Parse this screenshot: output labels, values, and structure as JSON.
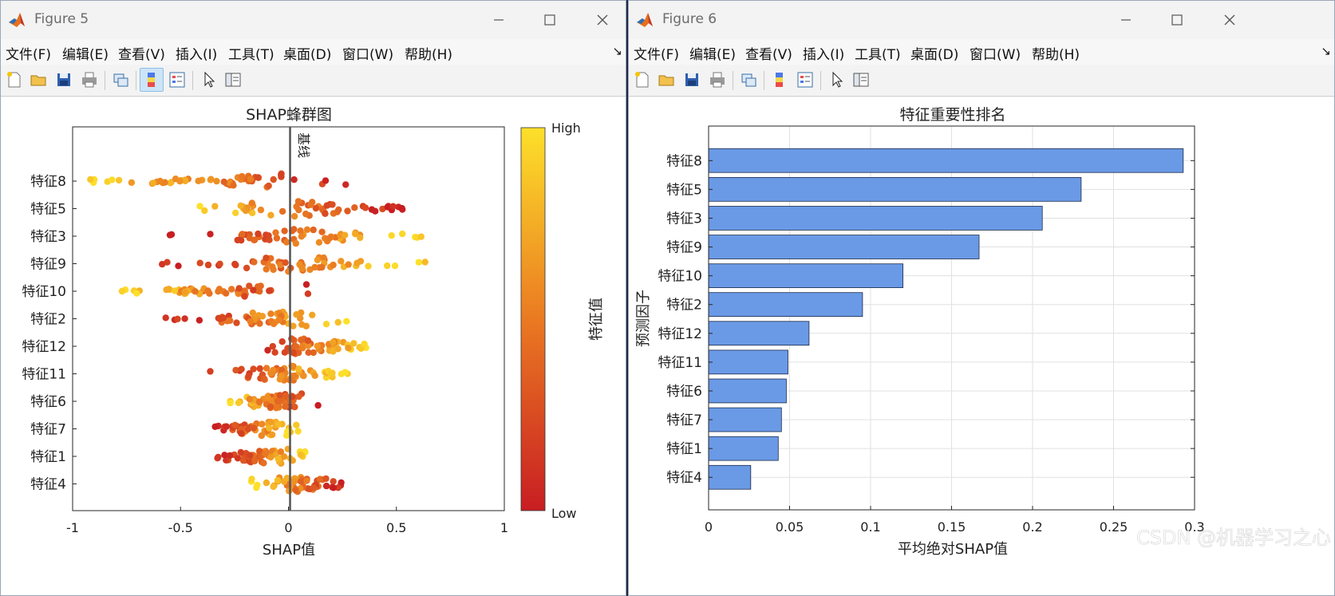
{
  "windows": [
    {
      "title": "Figure 5",
      "menu": [
        "文件(F)",
        "编辑(E)",
        "查看(V)",
        "插入(I)",
        "工具(T)",
        "桌面(D)",
        "窗口(W)",
        "帮助(H)"
      ],
      "dock_arrow": "↘"
    },
    {
      "title": "Figure 6",
      "menu": [
        "文件(F)",
        "编辑(E)",
        "查看(V)",
        "插入(I)",
        "工具(T)",
        "桌面(D)",
        "窗口(W)",
        "帮助(H)"
      ],
      "dock_arrow": "↘"
    }
  ],
  "toolbar_icons": [
    "new-figure-icon",
    "open-file-icon",
    "save-icon",
    "print-icon",
    "link-plot-icon",
    "insert-colorbar-icon",
    "insert-legend-icon",
    "edit-plot-arrow-icon",
    "property-inspector-icon"
  ],
  "watermark": "CSDN @机器学习之心",
  "colors": {
    "low": "#c81e22",
    "mid": "#ea7a22",
    "high": "#fde02a",
    "bar_fill": "#6a9ae6",
    "bar_edge": "#1b2a4a"
  },
  "chart_data": [
    {
      "type": "scatter",
      "title": "SHAP蜂群图",
      "xlabel": "SHAP值",
      "ylabel": "",
      "xlim": [
        -1,
        1
      ],
      "xticks": [
        -1,
        -0.5,
        0,
        0.5,
        1
      ],
      "xtick_labels": [
        "-1",
        "-0.5",
        "0",
        "0.5",
        "1"
      ],
      "baseline_label": "基线",
      "colorbar": {
        "label": "特征值",
        "high_label": "High",
        "low_label": "Low"
      },
      "features": [
        {
          "name": "特征8",
          "min": -1.0,
          "max": 0.34,
          "low_side": "positive"
        },
        {
          "name": "特征5",
          "min": -0.5,
          "max": 0.53,
          "low_side": "positive"
        },
        {
          "name": "特征3",
          "min": -0.55,
          "max": 0.72,
          "low_side": "negative"
        },
        {
          "name": "特征9",
          "min": -0.62,
          "max": 0.71,
          "low_side": "negative"
        },
        {
          "name": "特征10",
          "min": -0.78,
          "max": 0.12,
          "low_side": "positive"
        },
        {
          "name": "特征2",
          "min": -0.57,
          "max": 0.29,
          "low_side": "negative"
        },
        {
          "name": "特征12",
          "min": -0.14,
          "max": 0.37,
          "low_side": "negative"
        },
        {
          "name": "特征11",
          "min": -0.37,
          "max": 0.28,
          "low_side": "negative"
        },
        {
          "name": "特征6",
          "min": -0.31,
          "max": 0.14,
          "low_side": "positive"
        },
        {
          "name": "特征7",
          "min": -0.34,
          "max": 0.05,
          "low_side": "negative"
        },
        {
          "name": "特征1",
          "min": -0.33,
          "max": 0.1,
          "low_side": "negative"
        },
        {
          "name": "特征4",
          "min": -0.18,
          "max": 0.28,
          "low_side": "positive"
        }
      ],
      "grid": false
    },
    {
      "type": "bar",
      "orientation": "horizontal",
      "title": "特征重要性排名",
      "xlabel": "平均绝对SHAP值",
      "ylabel": "预测因子",
      "xlim": [
        0,
        0.3
      ],
      "xticks": [
        0,
        0.05,
        0.1,
        0.15,
        0.2,
        0.25,
        0.3
      ],
      "xtick_labels": [
        "0",
        "0.05",
        "0.1",
        "0.15",
        "0.2",
        "0.25",
        "0.3"
      ],
      "categories": [
        "特征8",
        "特征5",
        "特征3",
        "特征9",
        "特征10",
        "特征2",
        "特征12",
        "特征11",
        "特征6",
        "特征7",
        "特征1",
        "特征4"
      ],
      "values": [
        0.293,
        0.23,
        0.206,
        0.167,
        0.12,
        0.095,
        0.062,
        0.049,
        0.048,
        0.045,
        0.043,
        0.026
      ],
      "grid": true
    }
  ]
}
